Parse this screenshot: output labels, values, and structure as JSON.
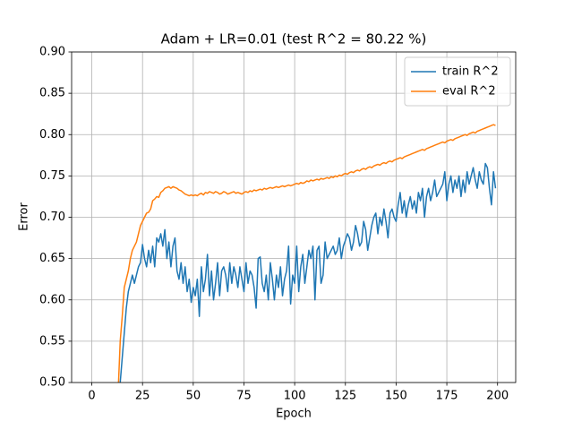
{
  "chart_data": {
    "type": "line",
    "title": "Adam + LR=0.01 (test R^2 = 80.22 %)",
    "x_label": "Epoch",
    "y_label": "Error",
    "xlim": [
      -9.95,
      208.95
    ],
    "ylim": [
      0.5,
      0.9
    ],
    "xticks": [
      0,
      25,
      50,
      75,
      100,
      125,
      150,
      175,
      200
    ],
    "yticks": [
      {
        "value": 0.5,
        "label": "0.50"
      },
      0.55,
      {
        "value": 0.6,
        "label": "0.60"
      },
      0.65,
      {
        "value": 0.7,
        "label": "0.70"
      },
      0.75,
      {
        "value": 0.8,
        "label": "0.80"
      },
      0.85,
      {
        "value": 0.9,
        "label": "0.90"
      }
    ],
    "grid": true,
    "legend": "upper right",
    "x": [
      13,
      14,
      15,
      16,
      17,
      18,
      19,
      20,
      21,
      22,
      23,
      24,
      25,
      26,
      27,
      28,
      29,
      30,
      31,
      32,
      33,
      34,
      35,
      36,
      37,
      38,
      39,
      40,
      41,
      42,
      43,
      44,
      45,
      46,
      47,
      48,
      49,
      50,
      51,
      52,
      53,
      54,
      55,
      56,
      57,
      58,
      59,
      60,
      61,
      62,
      63,
      64,
      65,
      66,
      67,
      68,
      69,
      70,
      71,
      72,
      73,
      74,
      75,
      76,
      77,
      78,
      79,
      80,
      81,
      82,
      83,
      84,
      85,
      86,
      87,
      88,
      89,
      90,
      91,
      92,
      93,
      94,
      95,
      96,
      97,
      98,
      99,
      100,
      101,
      102,
      103,
      104,
      105,
      106,
      107,
      108,
      109,
      110,
      111,
      112,
      113,
      114,
      115,
      116,
      117,
      118,
      119,
      120,
      121,
      122,
      123,
      124,
      125,
      126,
      127,
      128,
      129,
      130,
      131,
      132,
      133,
      134,
      135,
      136,
      137,
      138,
      139,
      140,
      141,
      142,
      143,
      144,
      145,
      146,
      147,
      148,
      149,
      150,
      151,
      152,
      153,
      154,
      155,
      156,
      157,
      158,
      159,
      160,
      161,
      162,
      163,
      164,
      165,
      166,
      167,
      168,
      169,
      170,
      171,
      172,
      173,
      174,
      175,
      176,
      177,
      178,
      179,
      180,
      181,
      182,
      183,
      184,
      185,
      186,
      187,
      188,
      189,
      190,
      191,
      192,
      193,
      194,
      195,
      196,
      197,
      198,
      199
    ],
    "series": [
      {
        "name": "train R^2",
        "color": "#1f77b4",
        "values": [
          0.48,
          0.5,
          0.53,
          0.56,
          0.59,
          0.61,
          0.62,
          0.63,
          0.62,
          0.63,
          0.64,
          0.645,
          0.667,
          0.65,
          0.64,
          0.66,
          0.645,
          0.665,
          0.64,
          0.675,
          0.67,
          0.68,
          0.665,
          0.685,
          0.65,
          0.67,
          0.64,
          0.665,
          0.675,
          0.635,
          0.625,
          0.645,
          0.62,
          0.64,
          0.61,
          0.625,
          0.597,
          0.615,
          0.605,
          0.625,
          0.58,
          0.64,
          0.61,
          0.625,
          0.655,
          0.605,
          0.635,
          0.6,
          0.62,
          0.645,
          0.605,
          0.635,
          0.64,
          0.63,
          0.61,
          0.645,
          0.62,
          0.64,
          0.63,
          0.615,
          0.64,
          0.625,
          0.61,
          0.645,
          0.62,
          0.635,
          0.63,
          0.615,
          0.59,
          0.65,
          0.652,
          0.62,
          0.61,
          0.63,
          0.6,
          0.645,
          0.625,
          0.6,
          0.63,
          0.615,
          0.64,
          0.605,
          0.625,
          0.635,
          0.665,
          0.595,
          0.63,
          0.62,
          0.665,
          0.61,
          0.64,
          0.655,
          0.62,
          0.64,
          0.66,
          0.65,
          0.665,
          0.6,
          0.66,
          0.665,
          0.62,
          0.63,
          0.67,
          0.65,
          0.655,
          0.66,
          0.665,
          0.655,
          0.66,
          0.675,
          0.65,
          0.665,
          0.672,
          0.68,
          0.675,
          0.66,
          0.67,
          0.69,
          0.68,
          0.665,
          0.67,
          0.695,
          0.685,
          0.66,
          0.675,
          0.69,
          0.7,
          0.705,
          0.68,
          0.7,
          0.69,
          0.71,
          0.695,
          0.675,
          0.705,
          0.71,
          0.7,
          0.695,
          0.715,
          0.73,
          0.705,
          0.72,
          0.7,
          0.715,
          0.725,
          0.71,
          0.72,
          0.705,
          0.73,
          0.72,
          0.735,
          0.7,
          0.725,
          0.735,
          0.72,
          0.73,
          0.745,
          0.725,
          0.73,
          0.735,
          0.74,
          0.755,
          0.72,
          0.74,
          0.75,
          0.73,
          0.745,
          0.735,
          0.75,
          0.725,
          0.745,
          0.73,
          0.755,
          0.74,
          0.75,
          0.76,
          0.745,
          0.735,
          0.755,
          0.745,
          0.74,
          0.765,
          0.76,
          0.735,
          0.715,
          0.755,
          0.735
        ]
      },
      {
        "name": "eval R^2",
        "color": "#ff7f0e",
        "values": [
          0.49,
          0.55,
          0.58,
          0.615,
          0.625,
          0.635,
          0.65,
          0.66,
          0.665,
          0.67,
          0.68,
          0.69,
          0.695,
          0.7,
          0.705,
          0.706,
          0.71,
          0.72,
          0.722,
          0.725,
          0.724,
          0.73,
          0.732,
          0.735,
          0.736,
          0.737,
          0.735,
          0.737,
          0.736,
          0.735,
          0.733,
          0.732,
          0.73,
          0.728,
          0.727,
          0.726,
          0.727,
          0.726,
          0.727,
          0.726,
          0.728,
          0.729,
          0.727,
          0.73,
          0.729,
          0.731,
          0.73,
          0.729,
          0.731,
          0.73,
          0.728,
          0.729,
          0.731,
          0.73,
          0.728,
          0.729,
          0.73,
          0.731,
          0.729,
          0.73,
          0.729,
          0.728,
          0.73,
          0.731,
          0.73,
          0.732,
          0.731,
          0.733,
          0.732,
          0.733,
          0.734,
          0.733,
          0.735,
          0.734,
          0.735,
          0.736,
          0.735,
          0.736,
          0.737,
          0.736,
          0.737,
          0.738,
          0.737,
          0.738,
          0.739,
          0.738,
          0.739,
          0.74,
          0.741,
          0.74,
          0.742,
          0.741,
          0.742,
          0.744,
          0.743,
          0.745,
          0.744,
          0.745,
          0.746,
          0.745,
          0.747,
          0.746,
          0.747,
          0.748,
          0.747,
          0.749,
          0.748,
          0.75,
          0.749,
          0.751,
          0.75,
          0.752,
          0.753,
          0.752,
          0.754,
          0.755,
          0.754,
          0.756,
          0.757,
          0.756,
          0.758,
          0.759,
          0.758,
          0.76,
          0.761,
          0.76,
          0.762,
          0.763,
          0.764,
          0.763,
          0.765,
          0.766,
          0.765,
          0.767,
          0.768,
          0.767,
          0.769,
          0.77,
          0.771,
          0.772,
          0.771,
          0.773,
          0.774,
          0.775,
          0.776,
          0.777,
          0.778,
          0.779,
          0.78,
          0.781,
          0.782,
          0.781,
          0.783,
          0.784,
          0.785,
          0.786,
          0.787,
          0.788,
          0.789,
          0.79,
          0.791,
          0.79,
          0.792,
          0.793,
          0.794,
          0.793,
          0.795,
          0.796,
          0.797,
          0.798,
          0.799,
          0.8,
          0.799,
          0.801,
          0.802,
          0.803,
          0.802,
          0.804,
          0.805,
          0.806,
          0.807,
          0.808,
          0.809,
          0.81,
          0.811,
          0.812,
          0.811
        ]
      }
    ]
  }
}
